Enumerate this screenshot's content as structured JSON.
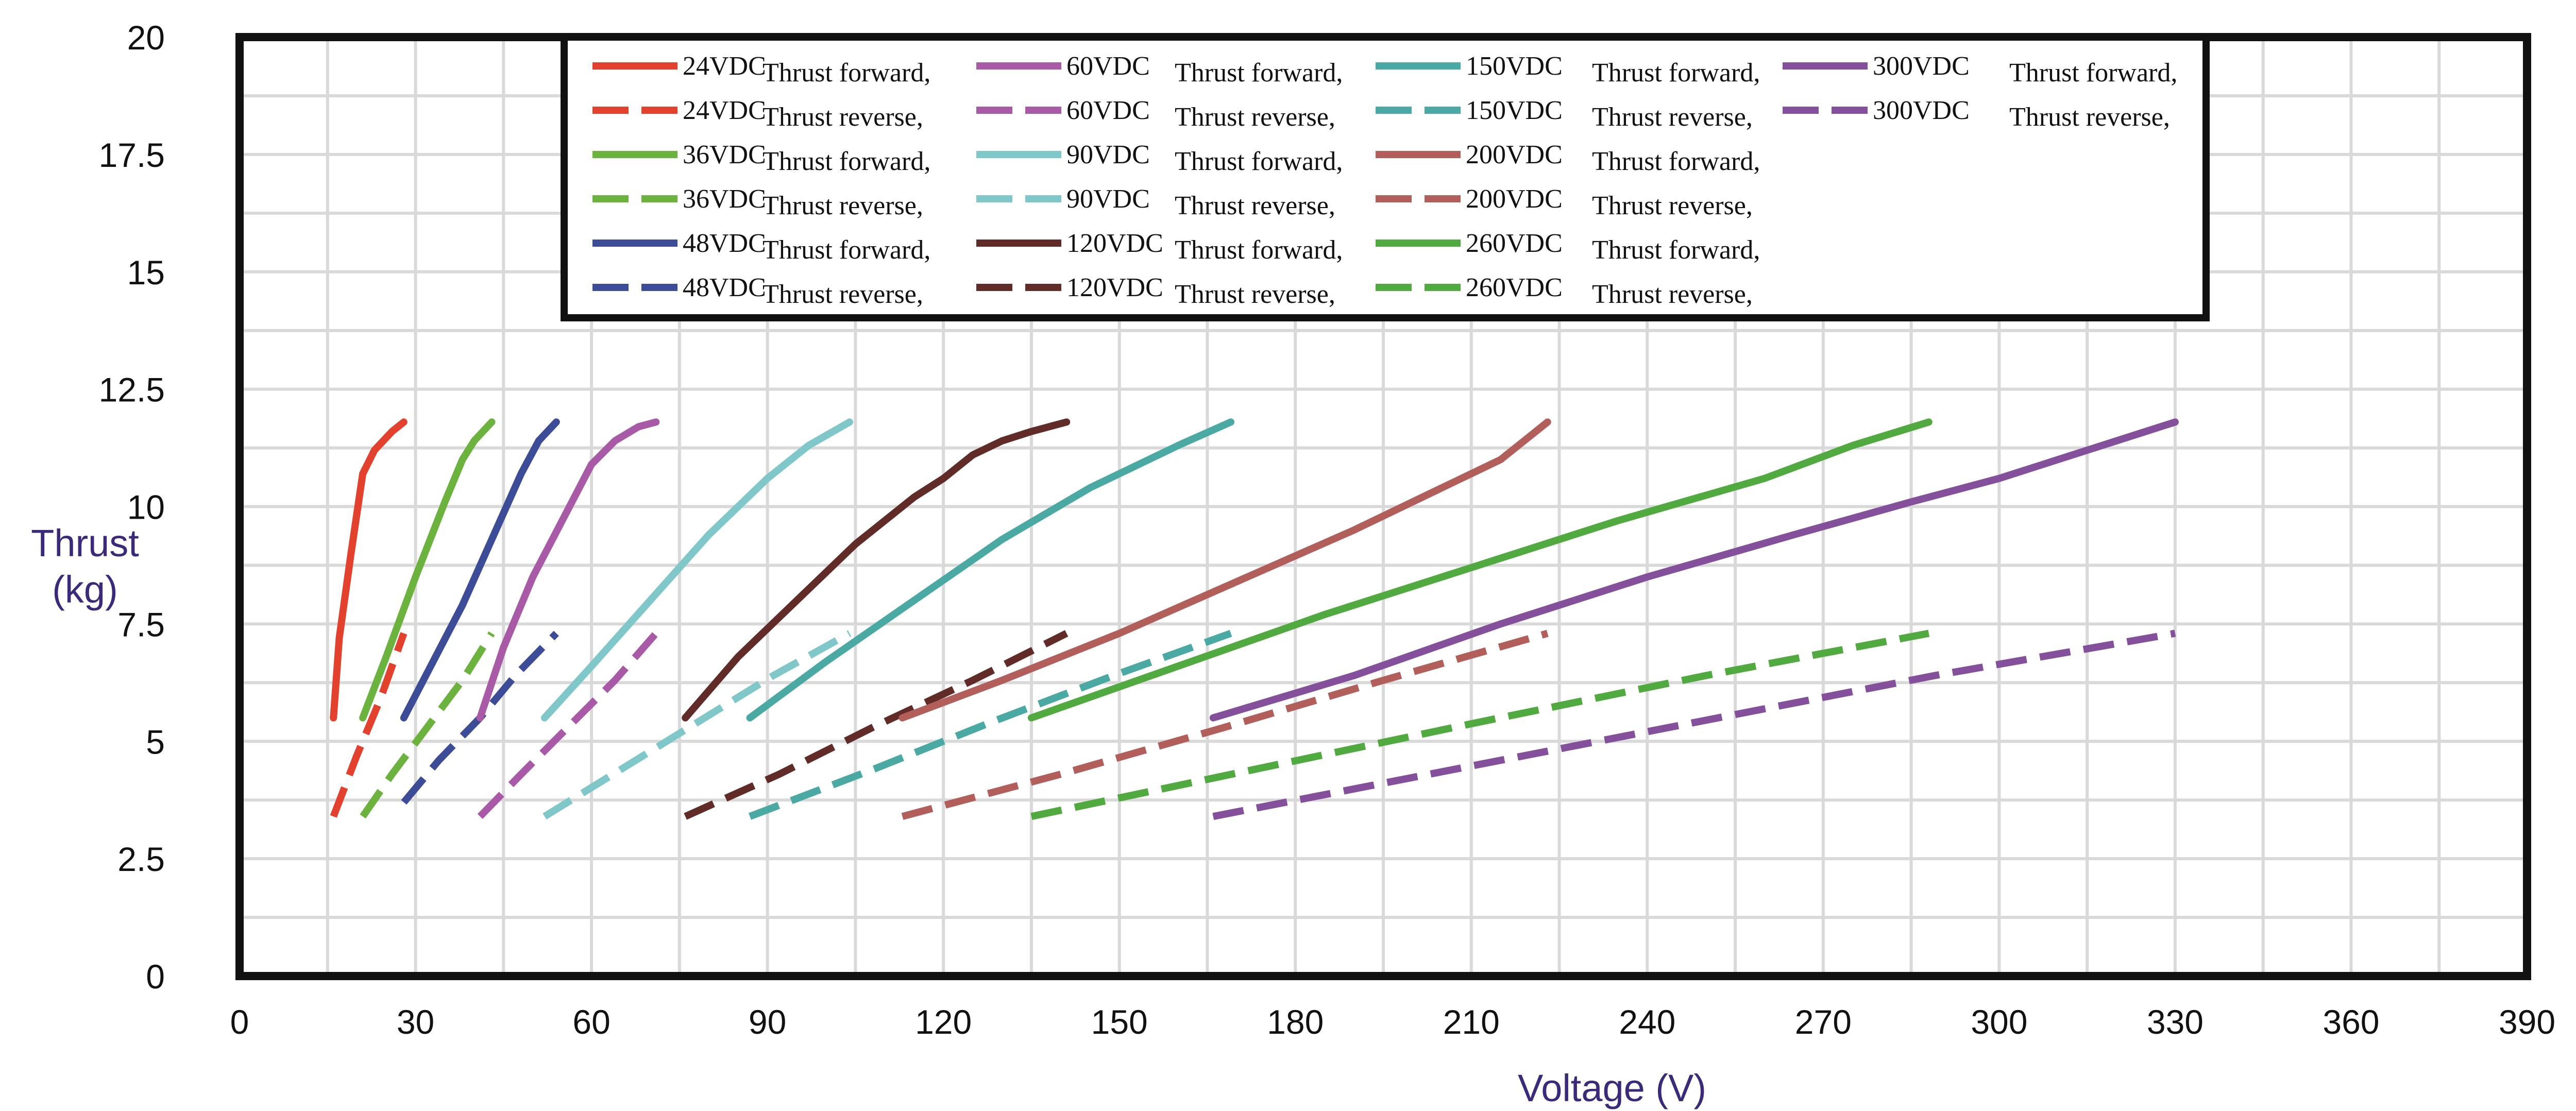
{
  "chart_data": {
    "type": "line",
    "title": "",
    "xlabel": "Voltage (V)",
    "ylabel": [
      "Thrust",
      "(kg)"
    ],
    "xlim": [
      0,
      390
    ],
    "ylim": [
      0,
      20
    ],
    "xticks": [
      0,
      30,
      60,
      90,
      120,
      150,
      180,
      210,
      240,
      270,
      300,
      330,
      360,
      390
    ],
    "yticks": [
      0,
      2.5,
      5,
      7.5,
      10,
      12.5,
      15,
      17.5,
      20
    ],
    "ytick_labels": [
      "0",
      "2.5",
      "5",
      "7.5",
      "10",
      "12.5",
      "15",
      "17.5",
      "20"
    ],
    "grid": true,
    "legend_position": "top",
    "series": [
      {
        "voltage_label": "24VDC",
        "mode": "Thrust forward,",
        "color": "#e2412e",
        "dashed": false,
        "x": [
          16,
          17,
          19,
          21,
          23,
          26,
          28
        ],
        "y": [
          5.5,
          7.2,
          9.0,
          10.7,
          11.2,
          11.6,
          11.8
        ]
      },
      {
        "voltage_label": "24VDC",
        "mode": "Thrust reverse,",
        "color": "#e2412e",
        "dashed": true,
        "x": [
          16,
          20,
          24,
          28
        ],
        "y": [
          3.4,
          4.7,
          5.9,
          7.3
        ]
      },
      {
        "voltage_label": "36VDC",
        "mode": "Thrust forward,",
        "color": "#6bb33e",
        "dashed": false,
        "x": [
          21,
          25,
          30,
          35,
          38,
          40,
          43
        ],
        "y": [
          5.5,
          6.8,
          8.5,
          10.1,
          11.0,
          11.4,
          11.8
        ]
      },
      {
        "voltage_label": "36VDC",
        "mode": "Thrust reverse,",
        "color": "#6bb33e",
        "dashed": true,
        "x": [
          21,
          26,
          32,
          38,
          43
        ],
        "y": [
          3.4,
          4.3,
          5.3,
          6.3,
          7.3
        ]
      },
      {
        "voltage_label": "48VDC",
        "mode": "Thrust forward,",
        "color": "#3c4c97",
        "dashed": false,
        "x": [
          28,
          33,
          38,
          43,
          48,
          51,
          54
        ],
        "y": [
          5.5,
          6.7,
          7.9,
          9.3,
          10.7,
          11.4,
          11.8
        ]
      },
      {
        "voltage_label": "48VDC",
        "mode": "Thrust reverse,",
        "color": "#3c4c97",
        "dashed": true,
        "x": [
          28,
          34,
          41,
          47,
          54
        ],
        "y": [
          3.7,
          4.6,
          5.5,
          6.4,
          7.3
        ]
      },
      {
        "voltage_label": "60VDC",
        "mode": "Thrust forward,",
        "color": "#a85aa6",
        "dashed": false,
        "x": [
          41,
          45,
          50,
          55,
          60,
          64,
          68,
          71
        ],
        "y": [
          5.5,
          7.0,
          8.5,
          9.7,
          10.9,
          11.4,
          11.7,
          11.8
        ]
      },
      {
        "voltage_label": "60VDC",
        "mode": "Thrust reverse,",
        "color": "#a85aa6",
        "dashed": true,
        "x": [
          41,
          48,
          56,
          64,
          71
        ],
        "y": [
          3.4,
          4.3,
          5.3,
          6.3,
          7.3
        ]
      },
      {
        "voltage_label": "90VDC",
        "mode": "Thrust forward,",
        "color": "#7fc7c8",
        "dashed": false,
        "x": [
          52,
          60,
          70,
          80,
          90,
          97,
          104
        ],
        "y": [
          5.5,
          6.6,
          8.0,
          9.4,
          10.6,
          11.3,
          11.8
        ]
      },
      {
        "voltage_label": "90VDC",
        "mode": "Thrust reverse,",
        "color": "#7fc7c8",
        "dashed": true,
        "x": [
          52,
          65,
          78,
          91,
          104
        ],
        "y": [
          3.4,
          4.4,
          5.4,
          6.4,
          7.3
        ]
      },
      {
        "voltage_label": "120VDC",
        "mode": "Thrust forward,",
        "color": "#612b27",
        "dashed": false,
        "x": [
          76,
          85,
          95,
          105,
          115,
          120,
          125,
          130,
          135,
          141
        ],
        "y": [
          5.5,
          6.8,
          8.0,
          9.2,
          10.2,
          10.6,
          11.1,
          11.4,
          11.6,
          11.8
        ]
      },
      {
        "voltage_label": "120VDC",
        "mode": "Thrust reverse,",
        "color": "#612b27",
        "dashed": true,
        "x": [
          76,
          92,
          108,
          125,
          141
        ],
        "y": [
          3.4,
          4.3,
          5.3,
          6.3,
          7.3
        ]
      },
      {
        "voltage_label": "150VDC",
        "mode": "Thrust forward,",
        "color": "#4aa9a2",
        "dashed": false,
        "x": [
          87,
          100,
          115,
          130,
          145,
          160,
          169
        ],
        "y": [
          5.5,
          6.7,
          8.0,
          9.3,
          10.4,
          11.3,
          11.8
        ]
      },
      {
        "voltage_label": "150VDC",
        "mode": "Thrust reverse,",
        "color": "#4aa9a2",
        "dashed": true,
        "x": [
          87,
          108,
          128,
          149,
          169
        ],
        "y": [
          3.4,
          4.4,
          5.4,
          6.4,
          7.3
        ]
      },
      {
        "voltage_label": "200VDC",
        "mode": "Thrust forward,",
        "color": "#b25f5b",
        "dashed": false,
        "x": [
          113,
          130,
          150,
          170,
          190,
          205,
          215,
          220,
          223
        ],
        "y": [
          5.5,
          6.3,
          7.3,
          8.4,
          9.5,
          10.4,
          11.0,
          11.5,
          11.8
        ]
      },
      {
        "voltage_label": "200VDC",
        "mode": "Thrust reverse,",
        "color": "#b25f5b",
        "dashed": true,
        "x": [
          113,
          140,
          168,
          195,
          223
        ],
        "y": [
          3.4,
          4.3,
          5.3,
          6.3,
          7.3
        ]
      },
      {
        "voltage_label": "260VDC",
        "mode": "Thrust forward,",
        "color": "#51aa3f",
        "dashed": false,
        "x": [
          135,
          160,
          185,
          210,
          235,
          260,
          275,
          288
        ],
        "y": [
          5.5,
          6.6,
          7.7,
          8.7,
          9.7,
          10.6,
          11.3,
          11.8
        ]
      },
      {
        "voltage_label": "260VDC",
        "mode": "Thrust reverse,",
        "color": "#51aa3f",
        "dashed": true,
        "x": [
          135,
          173,
          211,
          250,
          288
        ],
        "y": [
          3.4,
          4.4,
          5.4,
          6.4,
          7.3
        ]
      },
      {
        "voltage_label": "300VDC",
        "mode": "Thrust forward,",
        "color": "#84509b",
        "dashed": false,
        "x": [
          166,
          190,
          215,
          240,
          265,
          285,
          300,
          315,
          330
        ],
        "y": [
          5.5,
          6.4,
          7.5,
          8.5,
          9.4,
          10.1,
          10.6,
          11.2,
          11.8
        ]
      },
      {
        "voltage_label": "300VDC",
        "mode": "Thrust reverse,",
        "color": "#84509b",
        "dashed": true,
        "x": [
          166,
          207,
          248,
          289,
          330
        ],
        "y": [
          3.4,
          4.4,
          5.4,
          6.4,
          7.3
        ]
      }
    ]
  },
  "style": {
    "frame_color": "#111111",
    "grid_color": "#d9d9d9",
    "axis_title_color": "#3b2a7a",
    "background": "#ffffff"
  }
}
